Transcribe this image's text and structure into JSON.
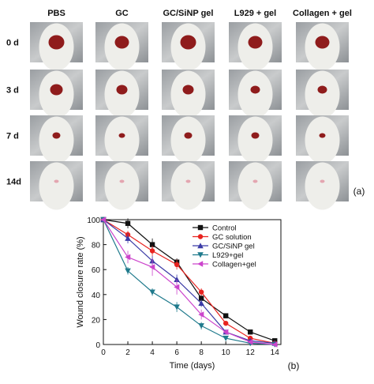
{
  "panel_a": {
    "columns": [
      "PBS",
      "GC",
      "GC/SiNP gel",
      "L929 + gel",
      "Collagen + gel"
    ],
    "rows": [
      "0 d",
      "3 d",
      "7 d",
      "14d"
    ],
    "label": "(a)"
  },
  "chart_data": {
    "type": "line",
    "annotation": "(b)",
    "x_label": "Time (days)",
    "y_label": "Wound closure rate (%)",
    "x": [
      0,
      2,
      4,
      6,
      8,
      10,
      12,
      14
    ],
    "xlim": [
      0,
      14.5
    ],
    "xticks": [
      0,
      2,
      4,
      6,
      8,
      10,
      12,
      14
    ],
    "ylim": [
      0,
      100
    ],
    "yticks": [
      0,
      20,
      40,
      60,
      80,
      100
    ],
    "legend": "upper right",
    "series": [
      {
        "name": "Control",
        "color": "#111111",
        "marker": "square",
        "values": [
          100,
          97,
          80,
          66,
          37,
          23,
          10,
          3
        ],
        "errors": [
          0,
          4,
          5,
          3,
          3,
          2,
          2,
          1
        ]
      },
      {
        "name": "GC solution",
        "color": "#e8231f",
        "marker": "circle",
        "values": [
          100,
          88,
          75,
          64,
          42,
          17,
          5,
          1
        ],
        "errors": [
          0,
          3,
          4,
          4,
          3,
          2,
          1,
          1
        ]
      },
      {
        "name": "GC/SiNP gel",
        "color": "#3b3ba6",
        "marker": "triangle-up",
        "values": [
          100,
          85,
          67,
          52,
          33,
          10,
          3,
          1
        ],
        "errors": [
          0,
          4,
          4,
          4,
          3,
          2,
          1,
          1
        ]
      },
      {
        "name": "L929+gel",
        "color": "#1f7a8c",
        "marker": "triangle-down",
        "values": [
          100,
          59,
          42,
          30,
          15,
          5,
          1,
          0
        ],
        "errors": [
          0,
          3,
          3,
          4,
          3,
          1,
          1,
          0
        ]
      },
      {
        "name": "Collagen+gel",
        "color": "#cc44cc",
        "marker": "triangle-left",
        "values": [
          100,
          70,
          62,
          46,
          24,
          10,
          2,
          0
        ],
        "errors": [
          0,
          5,
          7,
          6,
          4,
          2,
          1,
          0
        ]
      }
    ]
  }
}
